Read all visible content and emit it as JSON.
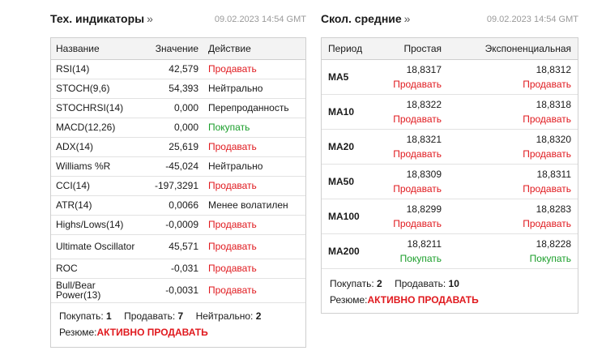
{
  "technical": {
    "title": "Тех. индикаторы",
    "arrow": "»",
    "timestamp": "09.02.2023 14:54 GMT",
    "headers": {
      "name": "Название",
      "value": "Значение",
      "action": "Действие"
    },
    "rows": [
      {
        "name": "RSI(14)",
        "value": "42,579",
        "action": "Продавать",
        "status": "sell"
      },
      {
        "name": "STOCH(9,6)",
        "value": "54,393",
        "action": "Нейтрально",
        "status": "neutral"
      },
      {
        "name": "STOCHRSI(14)",
        "value": "0,000",
        "action": "Перепроданность",
        "status": "neutral"
      },
      {
        "name": "MACD(12,26)",
        "value": "0,000",
        "action": "Покупать",
        "status": "buy"
      },
      {
        "name": "ADX(14)",
        "value": "25,619",
        "action": "Продавать",
        "status": "sell"
      },
      {
        "name": "Williams %R",
        "value": "-45,024",
        "action": "Нейтрально",
        "status": "neutral"
      },
      {
        "name": "CCI(14)",
        "value": "-197,3291",
        "action": "Продавать",
        "status": "sell"
      },
      {
        "name": "ATR(14)",
        "value": "0,0066",
        "action": "Менее волатилен",
        "status": "neutral"
      },
      {
        "name": "Highs/Lows(14)",
        "value": "-0,0009",
        "action": "Продавать",
        "status": "sell"
      },
      {
        "name": "Ultimate Oscillator",
        "value": "45,571",
        "action": "Продавать",
        "status": "sell"
      },
      {
        "name": "ROC",
        "value": "-0,031",
        "action": "Продавать",
        "status": "sell"
      },
      {
        "name": "Bull/Bear Power(13)",
        "value": "-0,0031",
        "action": "Продавать",
        "status": "sell"
      }
    ],
    "summary": {
      "buy_label": "Покупать:",
      "buy_count": "1",
      "sell_label": "Продавать:",
      "sell_count": "7",
      "neutral_label": "Нейтрально:",
      "neutral_count": "2",
      "resume_label": "Резюме:",
      "resume_value": "АКТИВНО ПРОДАВАТЬ"
    }
  },
  "moving_averages": {
    "title": "Скол. средние",
    "arrow": "»",
    "timestamp": "09.02.2023 14:54 GMT",
    "headers": {
      "period": "Период",
      "simple": "Простая",
      "exponential": "Экспоненциальная"
    },
    "rows": [
      {
        "period": "MA5",
        "simple_value": "18,8317",
        "simple_action": "Продавать",
        "simple_status": "sell",
        "exp_value": "18,8312",
        "exp_action": "Продавать",
        "exp_status": "sell"
      },
      {
        "period": "MA10",
        "simple_value": "18,8322",
        "simple_action": "Продавать",
        "simple_status": "sell",
        "exp_value": "18,8318",
        "exp_action": "Продавать",
        "exp_status": "sell"
      },
      {
        "period": "MA20",
        "simple_value": "18,8321",
        "simple_action": "Продавать",
        "simple_status": "sell",
        "exp_value": "18,8320",
        "exp_action": "Продавать",
        "exp_status": "sell"
      },
      {
        "period": "MA50",
        "simple_value": "18,8309",
        "simple_action": "Продавать",
        "simple_status": "sell",
        "exp_value": "18,8311",
        "exp_action": "Продавать",
        "exp_status": "sell"
      },
      {
        "period": "MA100",
        "simple_value": "18,8299",
        "simple_action": "Продавать",
        "simple_status": "sell",
        "exp_value": "18,8283",
        "exp_action": "Продавать",
        "exp_status": "sell"
      },
      {
        "period": "MA200",
        "simple_value": "18,8211",
        "simple_action": "Покупать",
        "simple_status": "buy",
        "exp_value": "18,8228",
        "exp_action": "Покупать",
        "exp_status": "buy"
      }
    ],
    "summary": {
      "buy_label": "Покупать:",
      "buy_count": "2",
      "sell_label": "Продавать:",
      "sell_count": "10",
      "resume_label": "Резюме:",
      "resume_value": "АКТИВНО ПРОДАВАТЬ"
    }
  },
  "colors": {
    "sell": "#e0191e",
    "buy": "#1a9e2a",
    "neutral": "#1a1a1a",
    "border": "#cfcfcf",
    "header_bg": "#f3f3f3"
  }
}
